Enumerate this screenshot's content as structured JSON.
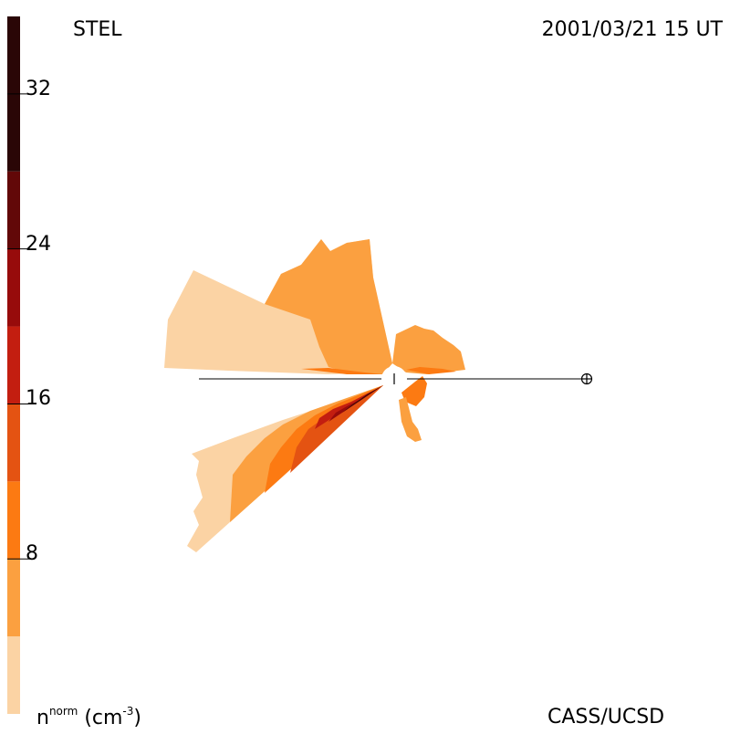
{
  "instrument": "STEL",
  "timestamp": "2001/03/21 15 UT",
  "credit": "CASS/UCSD",
  "colorbar": {
    "quantity_base": "n",
    "quantity_sup": "norm",
    "unit_open": "(cm",
    "unit_sup": "-3",
    "unit_close": ")",
    "levels": [
      {
        "from": 0,
        "to": 4,
        "color": "#fbd3a4"
      },
      {
        "from": 4,
        "to": 8,
        "color": "#fba040"
      },
      {
        "from": 8,
        "to": 12,
        "color": "#fc7a12"
      },
      {
        "from": 12,
        "to": 16,
        "color": "#e45312"
      },
      {
        "from": 16,
        "to": 20,
        "color": "#c31e10"
      },
      {
        "from": 20,
        "to": 24,
        "color": "#970b0b"
      },
      {
        "from": 24,
        "to": 28,
        "color": "#620808"
      },
      {
        "from": 28,
        "to": 36,
        "color": "#2a0606"
      }
    ],
    "ticks": [
      "8",
      "16",
      "24",
      "32"
    ],
    "range": [
      0,
      36
    ]
  },
  "markers": {
    "sun": "sun-marker",
    "earth": "earth-symbol"
  }
}
